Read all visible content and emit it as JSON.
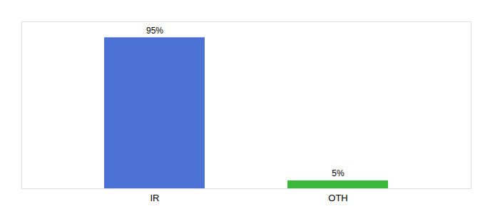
{
  "chart_data": {
    "type": "bar",
    "categories": [
      "IR",
      "OTH"
    ],
    "values": [
      95,
      5
    ],
    "value_labels": [
      "95%",
      "5%"
    ],
    "colors": [
      "#4b72d4",
      "#3cb83c"
    ],
    "ylim": [
      0,
      105
    ],
    "data_labels": true,
    "tick_labels": "x"
  }
}
